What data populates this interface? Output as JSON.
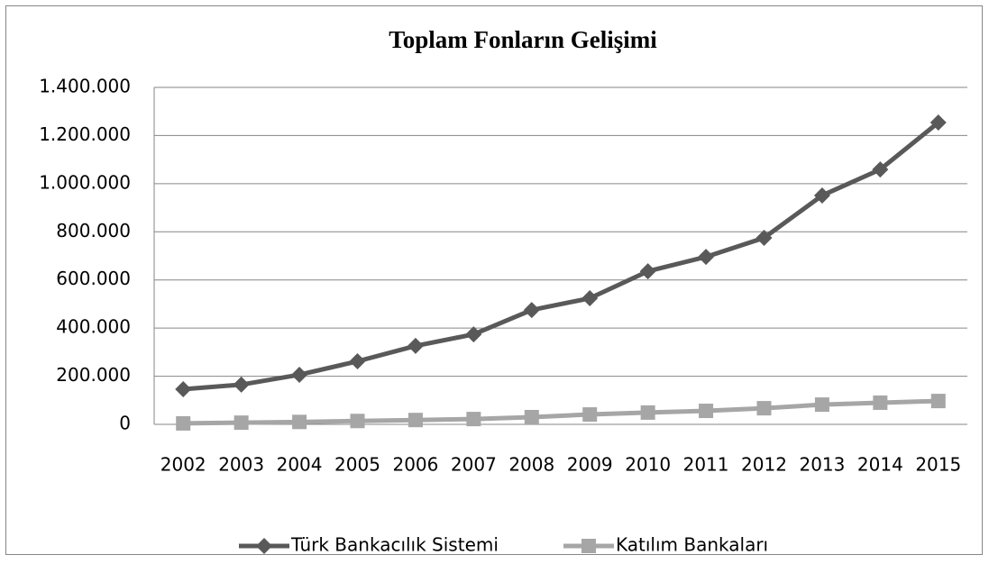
{
  "chart_data": {
    "type": "line",
    "title": "Toplam Fonların Gelişimi",
    "categories": [
      "2002",
      "2003",
      "2004",
      "2005",
      "2006",
      "2007",
      "2008",
      "2009",
      "2010",
      "2011",
      "2012",
      "2013",
      "2014",
      "2015"
    ],
    "series": [
      {
        "name": "Türk Bankacılık Sistemi",
        "color": "#595959",
        "marker": "diamond",
        "values": [
          146000,
          165000,
          206000,
          262000,
          326000,
          374000,
          475000,
          524000,
          636000,
          696000,
          775000,
          951000,
          1059000,
          1254000
        ]
      },
      {
        "name": "Katılım Bankaları",
        "color": "#a6a6a6",
        "marker": "square",
        "values": [
          4000,
          7000,
          10000,
          14000,
          18000,
          22000,
          30000,
          41000,
          49000,
          56000,
          67000,
          82000,
          90000,
          97000
        ]
      }
    ],
    "ylim": [
      0,
      1400000
    ],
    "yticks": [
      0,
      {
        "value": 200000,
        "label": "200.000"
      },
      {
        "value": 400000,
        "label": "400.000"
      },
      {
        "value": 600000,
        "label": "600.000"
      },
      {
        "value": 800000,
        "label": "800.000"
      },
      {
        "value": 1000000,
        "label": "1.000.000"
      },
      {
        "value": 1200000,
        "label": "1.200.000"
      },
      {
        "value": 1400000,
        "label": "1.400.000"
      }
    ],
    "grid": true,
    "legend": "bottom"
  }
}
